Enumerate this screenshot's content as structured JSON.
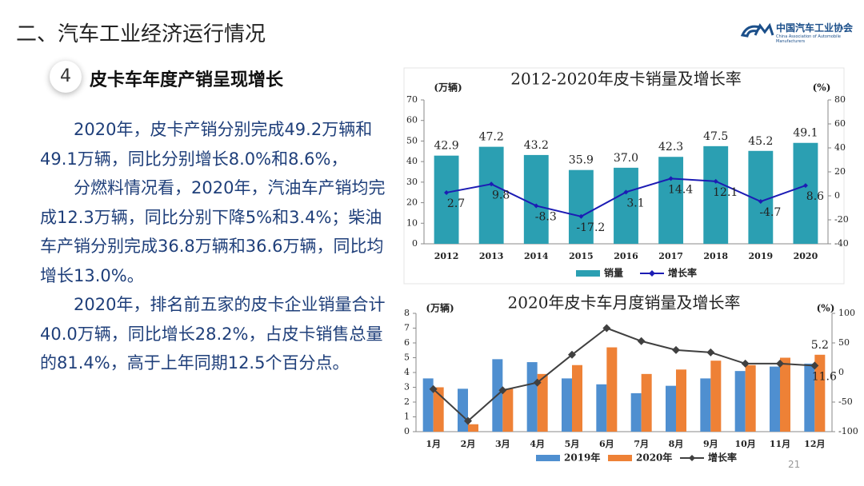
{
  "header": {
    "title": "二、汽车工业经济运行情况",
    "section_number": "4",
    "section_title": "皮卡车年度产销呈现增长",
    "logo_cn": "中国汽车工业协会",
    "logo_en": "China Association of Automobile Manufacturers"
  },
  "paragraphs": [
    "2020年，皮卡产销分别完成49.2万辆和49.1万辆，同比分别增长8.0%和8.6%，",
    "分燃料情况看，2020年，汽油车产销均完成12.3万辆，同比分别下降5%和3.4%；柴油车产销分别完成36.8万辆和36.6万辆，同比均增长13.0%。",
    "2020年，排名前五家的皮卡企业销量合计40.0万辆，同比增长28.2%，占皮卡销售总量的81.4%，高于上年同期12.5个百分点。"
  ],
  "page_number": "21",
  "chart_data": [
    {
      "type": "bar",
      "title": "2012-2020年皮卡销量及增长率",
      "y_label": "(万辆)",
      "y2_label": "(%)",
      "categories": [
        "2012",
        "2013",
        "2014",
        "2015",
        "2016",
        "2017",
        "2018",
        "2019",
        "2020"
      ],
      "series": [
        {
          "name": "销量",
          "color": "#2b9fb2",
          "values": [
            42.9,
            47.2,
            43.2,
            35.9,
            37.0,
            42.3,
            47.5,
            45.2,
            49.1
          ],
          "value_labels": [
            "42.9",
            "47.2",
            "43.2",
            "35.9",
            "37.0",
            "42.3",
            "47.5",
            "45.2",
            "49.1"
          ]
        },
        {
          "name": "增长率",
          "color": "#1c1cb4",
          "axis": "y2",
          "data_labels": true,
          "values": [
            2.7,
            9.8,
            -8.3,
            -17.2,
            3.1,
            14.4,
            12.1,
            -4.7,
            8.6
          ]
        }
      ],
      "ylim": [
        0,
        70
      ],
      "yticks": [
        0,
        10,
        20,
        30,
        40,
        50,
        60,
        70
      ],
      "y2lim": [
        -40,
        80
      ],
      "y2ticks": [
        -40,
        -20,
        0,
        20,
        40,
        60,
        80
      ],
      "legend": "bottom"
    },
    {
      "type": "bar",
      "title": "2020年皮卡车月度销量及增长率",
      "y_label": "(万辆)",
      "y2_label": "(%)",
      "categories": [
        "1月",
        "2月",
        "3月",
        "4月",
        "5月",
        "6月",
        "7月",
        "8月",
        "9月",
        "10月",
        "11月",
        "12月"
      ],
      "series": [
        {
          "name": "2019年",
          "color": "#4f8fd0",
          "values": [
            3.6,
            2.9,
            4.9,
            4.7,
            3.6,
            3.2,
            2.6,
            3.1,
            3.6,
            4.1,
            4.4,
            4.6
          ]
        },
        {
          "name": "2020年",
          "color": "#ee8136",
          "values": [
            3.0,
            0.5,
            2.9,
            3.9,
            4.5,
            5.7,
            3.9,
            4.2,
            4.8,
            4.5,
            5.0,
            5.2
          ],
          "value_labels": [
            null,
            null,
            null,
            null,
            null,
            null,
            null,
            null,
            null,
            null,
            null,
            "5.2"
          ]
        },
        {
          "name": "增长率",
          "color": "#404040",
          "axis": "y2",
          "values": [
            -28,
            -82,
            -30,
            -17,
            30,
            75,
            53,
            38,
            34,
            15,
            15,
            11.6
          ],
          "value_labels": [
            null,
            null,
            null,
            null,
            null,
            null,
            null,
            null,
            null,
            null,
            null,
            "11.6"
          ]
        }
      ],
      "ylim": [
        0,
        8
      ],
      "yticks": [
        0,
        1,
        2,
        3,
        4,
        5,
        6,
        7,
        8
      ],
      "y2lim": [
        -100,
        100
      ],
      "y2ticks": [
        -100,
        -50,
        0,
        50,
        100
      ],
      "legend": "bottom"
    }
  ]
}
